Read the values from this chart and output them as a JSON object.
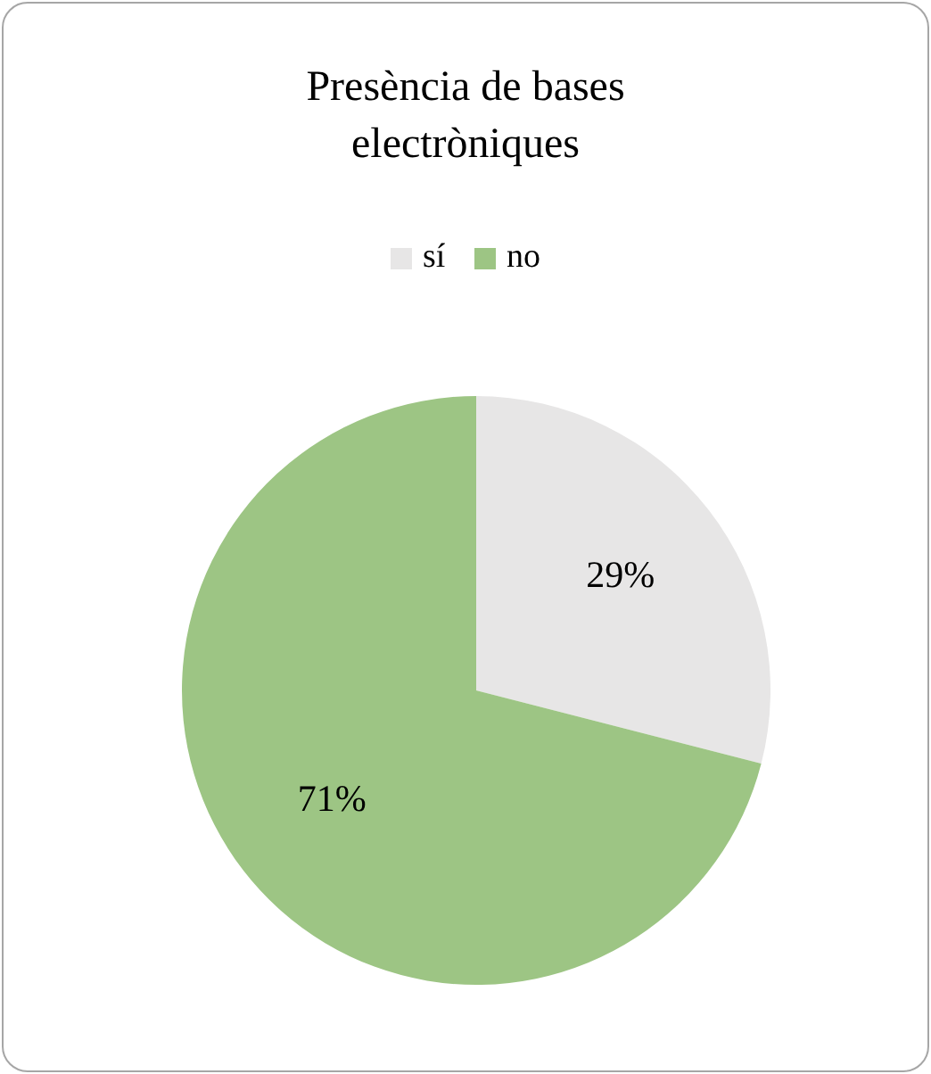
{
  "chart_data": {
    "type": "pie",
    "title": "Presència de bases electròniques",
    "categories": [
      "sí",
      "no"
    ],
    "values": [
      29,
      71
    ],
    "colors": [
      "#e7e6e6",
      "#9dc584"
    ],
    "value_labels": [
      "29%",
      "71%"
    ],
    "legend": "top"
  }
}
